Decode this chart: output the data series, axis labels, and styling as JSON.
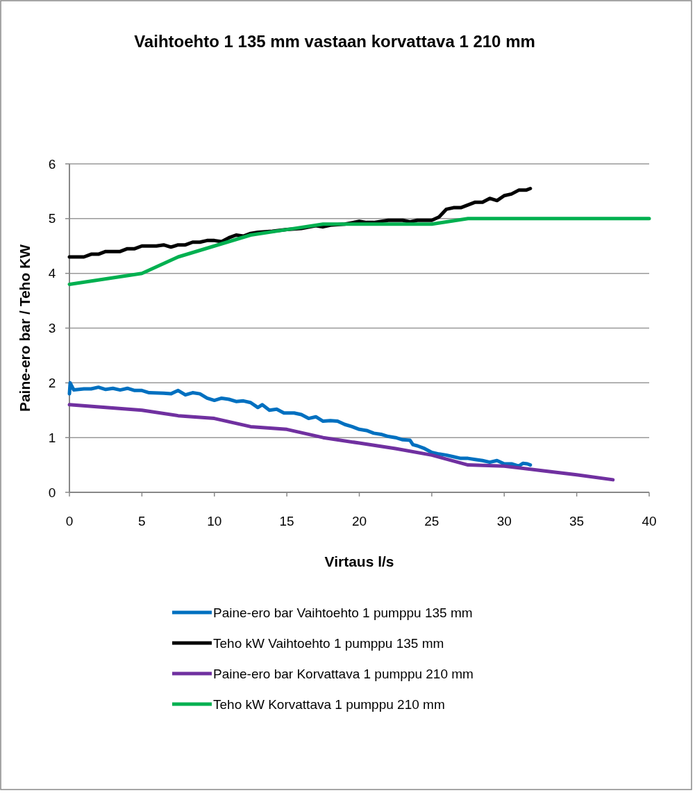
{
  "chart_data": {
    "type": "line",
    "title": "Vaihtoehto 1 135 mm vastaan korvattava 1 210 mm",
    "xlabel": "Virtaus l/s",
    "ylabel": "Paine-ero bar / Teho KW",
    "xlim": [
      0,
      40
    ],
    "xticks": [
      0,
      5,
      10,
      15,
      20,
      25,
      30,
      35,
      40
    ],
    "ylim": [
      0,
      6
    ],
    "yticks": [
      0,
      1,
      2,
      3,
      4,
      5,
      6
    ],
    "grid": "y",
    "legend": "bottom",
    "marker": "none",
    "line_style": "solid",
    "series": [
      {
        "name": "Paine-ero bar Vaihtoehto 1 pumppu 135 mm",
        "color": "#0070c0",
        "x": [
          0,
          0.05,
          0.3,
          1,
          1.5,
          2,
          2.5,
          3,
          3.5,
          4,
          4.5,
          5,
          5.5,
          6.5,
          7,
          7.5,
          8,
          8.5,
          9,
          9.5,
          10,
          10.5,
          11,
          11.5,
          12,
          12.5,
          13,
          13.3,
          13.8,
          14.3,
          14.8,
          15.5,
          16,
          16.5,
          17,
          17.5,
          18,
          18.5,
          19,
          19.5,
          20,
          20.5,
          21,
          21.5,
          22,
          22.5,
          23,
          23.5,
          23.7,
          24,
          24.5,
          25,
          25.5,
          26,
          26.5,
          27,
          27.5,
          28,
          28.5,
          29,
          29.5,
          30,
          30.5,
          31,
          31.3,
          31.6,
          31.8
        ],
        "values": [
          1.8,
          2.0,
          1.87,
          1.89,
          1.89,
          1.92,
          1.88,
          1.9,
          1.87,
          1.9,
          1.86,
          1.86,
          1.82,
          1.81,
          1.8,
          1.86,
          1.78,
          1.82,
          1.8,
          1.72,
          1.68,
          1.72,
          1.7,
          1.66,
          1.67,
          1.64,
          1.55,
          1.6,
          1.5,
          1.52,
          1.45,
          1.45,
          1.42,
          1.35,
          1.38,
          1.3,
          1.31,
          1.3,
          1.24,
          1.2,
          1.15,
          1.13,
          1.08,
          1.06,
          1.02,
          1.0,
          0.96,
          0.95,
          0.87,
          0.85,
          0.8,
          0.73,
          0.7,
          0.68,
          0.65,
          0.62,
          0.62,
          0.6,
          0.58,
          0.55,
          0.58,
          0.52,
          0.52,
          0.48,
          0.53,
          0.52,
          0.5
        ]
      },
      {
        "name": "Teho kW Vaihtoehto 1 pumppu 135 mm",
        "color": "#000000",
        "x": [
          0,
          0.5,
          1,
          1.5,
          2,
          2.5,
          3.5,
          4,
          4.5,
          5,
          6,
          6.5,
          7,
          7.5,
          8,
          8.5,
          9,
          9.5,
          10,
          10.5,
          11,
          11.5,
          12,
          12.5,
          13,
          14,
          15,
          16,
          17,
          17.5,
          18,
          19,
          20,
          20.5,
          21,
          22,
          23,
          23.5,
          24,
          25,
          25.5,
          26,
          26.5,
          27,
          27.5,
          28,
          28.5,
          29,
          29.5,
          30,
          30.5,
          31,
          31.5,
          31.8
        ],
        "values": [
          4.3,
          4.3,
          4.3,
          4.35,
          4.35,
          4.4,
          4.4,
          4.45,
          4.45,
          4.5,
          4.5,
          4.52,
          4.48,
          4.52,
          4.52,
          4.57,
          4.57,
          4.6,
          4.6,
          4.58,
          4.65,
          4.7,
          4.68,
          4.73,
          4.75,
          4.77,
          4.8,
          4.82,
          4.87,
          4.85,
          4.88,
          4.9,
          4.95,
          4.93,
          4.93,
          4.97,
          4.97,
          4.94,
          4.97,
          4.97,
          5.03,
          5.17,
          5.2,
          5.2,
          5.25,
          5.3,
          5.3,
          5.37,
          5.33,
          5.42,
          5.45,
          5.52,
          5.52,
          5.55
        ]
      },
      {
        "name": "Paine-ero bar Korvattava 1 pumppu 210 mm",
        "color": "#7030a0",
        "x": [
          0,
          5,
          7.5,
          10,
          12.5,
          15,
          17.5,
          20,
          22.5,
          25,
          27.5,
          30,
          32.5,
          35,
          37.5
        ],
        "values": [
          1.6,
          1.5,
          1.4,
          1.35,
          1.2,
          1.15,
          1.0,
          0.9,
          0.8,
          0.68,
          0.5,
          0.48,
          0.4,
          0.32,
          0.23
        ]
      },
      {
        "name": "Teho kW Korvattava 1 pumppu 210 mm",
        "color": "#00b050",
        "x": [
          0,
          5,
          7.5,
          10,
          12.5,
          15,
          17.5,
          20,
          22.5,
          25,
          27.5,
          30,
          40
        ],
        "values": [
          3.8,
          4.0,
          4.3,
          4.5,
          4.7,
          4.8,
          4.9,
          4.9,
          4.9,
          4.9,
          5.0,
          5.0,
          5.0
        ]
      }
    ]
  }
}
